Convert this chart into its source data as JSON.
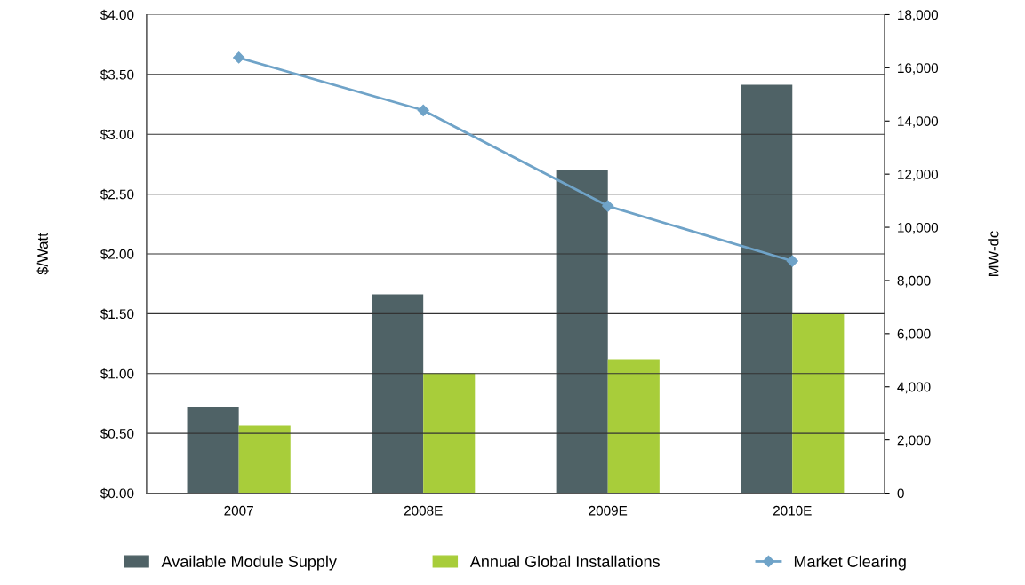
{
  "chart_data": {
    "type": "bar",
    "ylabel": "$/Watt",
    "y2label": "MW-dc",
    "categories": [
      "2007",
      "2008E",
      "2009E",
      "2010E"
    ],
    "series": [
      {
        "name": "Available Module Supply",
        "color": "#4f6266",
        "axis": "y2",
        "values": [
          3240,
          7480,
          12160,
          15360
        ]
      },
      {
        "name": "Annual Global Installations",
        "color": "#a8cd3a",
        "axis": "y2",
        "values": [
          2540,
          4510,
          5040,
          6750
        ]
      },
      {
        "name": "Market Clearing",
        "type": "line",
        "color": "#6fa3c8",
        "axis": "y",
        "marker": "diamond",
        "values": [
          3.64,
          3.2,
          2.4,
          1.94
        ]
      }
    ],
    "ylim": [
      0,
      4
    ],
    "yticks": [
      {
        "value": 0,
        "label": "$0.00"
      },
      {
        "value": 0.5,
        "label": "$0.50"
      },
      {
        "value": 1,
        "label": "$1.00"
      },
      {
        "value": 1.5,
        "label": "$1.50"
      },
      {
        "value": 2,
        "label": "$2.00"
      },
      {
        "value": 2.5,
        "label": "$2.50"
      },
      {
        "value": 3,
        "label": "$3.00"
      },
      {
        "value": 3.5,
        "label": "$3.50"
      },
      {
        "value": 4,
        "label": "$4.00"
      }
    ],
    "y2lim": [
      0,
      18000
    ],
    "y2ticks": [
      0,
      {
        "value": 2000,
        "label": "2,000"
      },
      {
        "value": 4000,
        "label": "4,000"
      },
      {
        "value": 6000,
        "label": "6,000"
      },
      {
        "value": 8000,
        "label": "8,000"
      },
      {
        "value": 10000,
        "label": "10,000"
      },
      {
        "value": 12000,
        "label": "12,000"
      },
      {
        "value": 14000,
        "label": "14,000"
      },
      {
        "value": 16000,
        "label": "16,000"
      },
      {
        "value": 18000,
        "label": "18,000"
      }
    ],
    "grid": "y",
    "legend": "bottom"
  }
}
